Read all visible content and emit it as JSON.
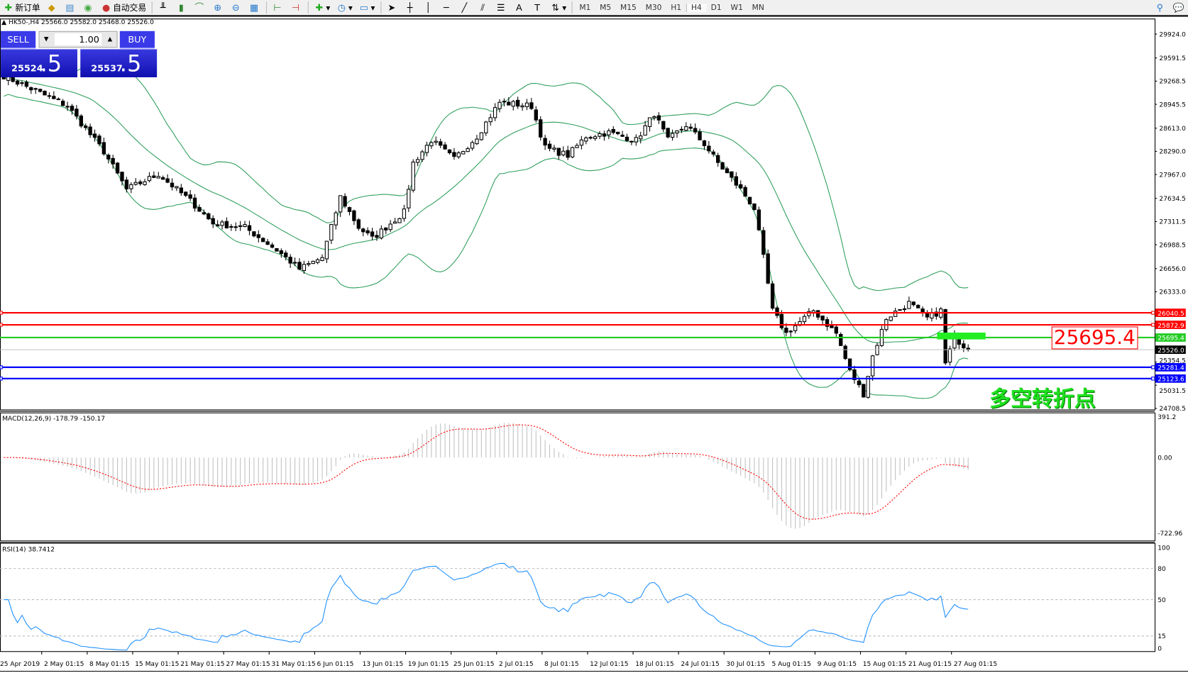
{
  "toolbar": {
    "items": [
      {
        "icon": "new-order-icon",
        "label": "新订单"
      },
      {
        "icon": "market-watch-icon",
        "label": ""
      },
      {
        "icon": "navigator-icon",
        "label": ""
      },
      {
        "icon": "signal-icon",
        "label": ""
      },
      {
        "icon": "autotrading-icon",
        "label": "自动交易"
      }
    ],
    "timeframes": [
      "M1",
      "M5",
      "M15",
      "M30",
      "H1",
      "H4",
      "D1",
      "W1",
      "MN"
    ],
    "active_timeframe": "H4"
  },
  "chart": {
    "title": "HK50-,H4  25566.0 25582.0 25468.0 25526.0",
    "trade_panel": {
      "sell_label": "SELL",
      "buy_label": "BUY",
      "lot": "1.00",
      "sell_main": "25524",
      "sell_big": ".5",
      "buy_main": "25537",
      "buy_big": ".5"
    },
    "annotation_price": "25695.4",
    "annotation_text": "多空转折点"
  },
  "chart_data": [
    {
      "type": "candlestick",
      "symbol": "HK50-",
      "timeframe": "H4",
      "ylim": [
        24708.5,
        30000
      ],
      "price_ticks": [
        "29924.0",
        "29591.5",
        "29268.5",
        "28945.5",
        "28613.0",
        "28290.0",
        "27967.0",
        "27634.5",
        "27311.5",
        "26988.5",
        "26656.0",
        "26333.0",
        "25354.5",
        "25031.5",
        "24708.5"
      ],
      "price_path": [
        [
          0,
          29343
        ],
        [
          14,
          28921
        ],
        [
          22,
          28288
        ],
        [
          27,
          27760
        ],
        [
          34,
          27971
        ],
        [
          41,
          27602
        ],
        [
          46,
          27285
        ],
        [
          53,
          27232
        ],
        [
          60,
          26915
        ],
        [
          65,
          26651
        ],
        [
          70,
          26810
        ],
        [
          74,
          27654
        ],
        [
          78,
          27232
        ],
        [
          81,
          27074
        ],
        [
          88,
          27443
        ],
        [
          90,
          28129
        ],
        [
          94,
          28446
        ],
        [
          99,
          28182
        ],
        [
          104,
          28499
        ],
        [
          109,
          28974
        ],
        [
          116,
          28921
        ],
        [
          119,
          28340
        ],
        [
          124,
          28235
        ],
        [
          128,
          28499
        ],
        [
          133,
          28552
        ],
        [
          139,
          28446
        ],
        [
          143,
          28815
        ],
        [
          146,
          28446
        ],
        [
          150,
          28657
        ],
        [
          154,
          28393
        ],
        [
          157,
          28129
        ],
        [
          162,
          27760
        ],
        [
          165,
          27496
        ],
        [
          167,
          26810
        ],
        [
          169,
          26071
        ],
        [
          172,
          25754
        ],
        [
          178,
          26071
        ],
        [
          183,
          25754
        ],
        [
          186,
          25226
        ],
        [
          189,
          24909
        ],
        [
          191,
          25437
        ],
        [
          194,
          25965
        ],
        [
          199,
          26176
        ],
        [
          203,
          25965
        ],
        [
          206,
          26071
        ],
        [
          207,
          25332
        ],
        [
          209,
          25701
        ],
        [
          212,
          25526
        ]
      ],
      "indicators": [
        "Bollinger Bands"
      ],
      "levels": [
        {
          "price": "26040.5",
          "color": "#ff0000"
        },
        {
          "price": "25872.9",
          "color": "#ff0000"
        },
        {
          "price": "25695.4",
          "color": "#22cc22"
        },
        {
          "price": "25526.0",
          "color": "#000000"
        },
        {
          "price": "25281.4",
          "color": "#0000ff"
        },
        {
          "price": "25123.6",
          "color": "#0000ff"
        }
      ],
      "x_labels": [
        "25 Apr 2019",
        "2 May 01:15",
        "8 May 01:15",
        "15 May 01:15",
        "21 May 01:15",
        "27 May 01:15",
        "31 May 01:15",
        "6 Jun 01:15",
        "13 Jun 01:15",
        "19 Jun 01:15",
        "25 Jun 01:15",
        "2 Jul 01:15",
        "8 Jul 01:15",
        "12 Jul 01:15",
        "18 Jul 01:15",
        "24 Jul 01:15",
        "30 Jul 01:15",
        "5 Aug 01:15",
        "9 Aug 01:15",
        "15 Aug 01:15",
        "21 Aug 01:15",
        "27 Aug 01:15"
      ]
    },
    {
      "type": "macd",
      "label": "MACD(12,26,9) -178.79 -150.17",
      "ylim": [
        -722.96,
        391.2
      ],
      "ticks": [
        "391.2",
        "0.00",
        "-722.96"
      ],
      "signal_color": "#ff0000",
      "histogram_color": "#c0c0c0"
    },
    {
      "type": "line",
      "label": "RSI(14) 38.7412",
      "ylim": [
        0,
        100
      ],
      "ticks": [
        "100",
        "80",
        "50",
        "15",
        "0"
      ],
      "color": "#1e90ff"
    }
  ]
}
